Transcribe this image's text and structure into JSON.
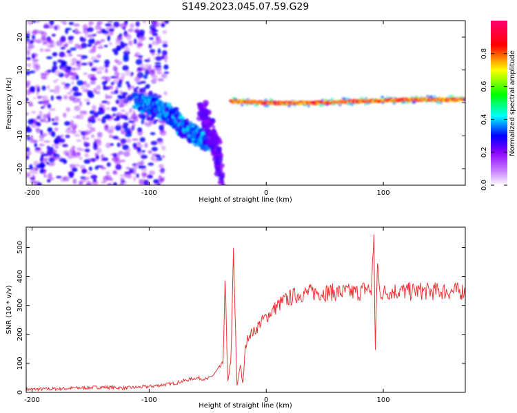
{
  "title": "S149.2023.045.07.59.G29",
  "chart_data": [
    {
      "type": "heatmap",
      "xlabel": "Height of straight line (km)",
      "ylabel": "Frequency (Hz)",
      "xlim": [
        -205,
        170
      ],
      "ylim": [
        -25,
        25
      ],
      "xticks": [
        -200,
        -100,
        0,
        100
      ],
      "yticks": [
        -20,
        -10,
        0,
        10,
        20
      ],
      "colorbar": {
        "label": "Normalized spectral amplitude",
        "range": [
          0.0,
          1.0
        ],
        "ticks": [
          0.0,
          0.2,
          0.4,
          0.6,
          0.8
        ],
        "tick_labels": [
          "0.0",
          "0.2",
          "0.4",
          "0.6",
          "0.8"
        ],
        "colormap": [
          "#ffffff",
          "#8a00ff",
          "#0000ff",
          "#00ffff",
          "#00ff00",
          "#ffff00",
          "#ff0000",
          "#ff0070"
        ]
      },
      "features": [
        {
          "name": "scattered noise",
          "x_range": [
            -205,
            -85
          ],
          "y_range": [
            -25,
            25
          ],
          "amplitude": 0.1
        },
        {
          "name": "descending arm",
          "x": [
            -110,
            -95,
            -80,
            -70,
            -60,
            -50
          ],
          "y": [
            0,
            -1,
            -4,
            -8,
            -10,
            -12
          ],
          "amplitude": 0.3
        },
        {
          "name": "steep descent",
          "x": [
            -55,
            -48,
            -42,
            -38
          ],
          "y": [
            -2,
            -8,
            -15,
            -24
          ],
          "amplitude": 0.15
        },
        {
          "name": "tone line",
          "x": [
            -30,
            0,
            40,
            80,
            120,
            170
          ],
          "y": [
            0.5,
            0,
            0,
            0.5,
            1,
            1
          ],
          "amplitude": 0.9
        }
      ]
    },
    {
      "type": "line",
      "xlabel": "Height of straight line (km)",
      "ylabel": "SNR (10 * v/v)",
      "xlim": [
        -205,
        170
      ],
      "ylim": [
        0,
        570
      ],
      "xticks": [
        -200,
        -100,
        0,
        100
      ],
      "yticks": [
        0,
        100,
        200,
        300,
        400,
        500
      ],
      "color": "#ee3333",
      "x": [
        -205,
        -180,
        -160,
        -140,
        -120,
        -100,
        -90,
        -80,
        -70,
        -60,
        -50,
        -45,
        -37,
        -35,
        -33,
        -30,
        -28,
        -25,
        -22,
        -20,
        -18,
        -15,
        -10,
        -5,
        0,
        5,
        10,
        15,
        20,
        25,
        30,
        40,
        50,
        60,
        70,
        80,
        85,
        90,
        92,
        93,
        95,
        97,
        98,
        100,
        110,
        120,
        130,
        140,
        150,
        160,
        170
      ],
      "y": [
        10,
        12,
        15,
        18,
        15,
        20,
        25,
        30,
        40,
        50,
        45,
        60,
        100,
        390,
        30,
        120,
        480,
        20,
        100,
        20,
        150,
        200,
        210,
        240,
        260,
        280,
        300,
        315,
        325,
        335,
        340,
        345,
        345,
        345,
        345,
        345,
        360,
        350,
        570,
        110,
        460,
        330,
        345,
        345,
        350,
        348,
        350,
        348,
        350,
        348,
        350
      ]
    }
  ]
}
